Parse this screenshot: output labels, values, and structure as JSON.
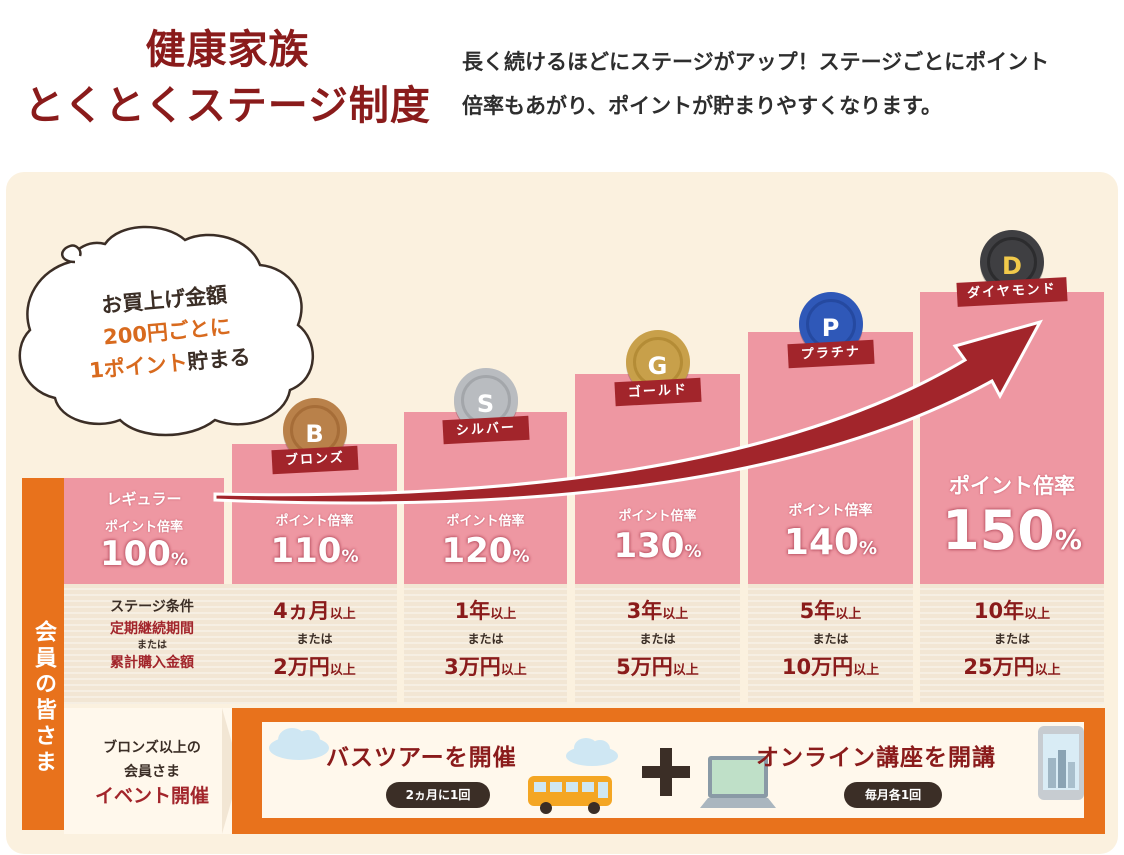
{
  "header": {
    "title_line1": "健康家族",
    "title_line2": "とくとくステージ制度",
    "intro_line1": "長く続けるほどにステージがアップ！ステージごとにポイント",
    "intro_line2": "倍率もあがり、ポイントが貯まりやすくなります。"
  },
  "bubble": {
    "line1": "お買上げ金額",
    "line2": "200円ごとに",
    "line3_accent": "1ポイント",
    "line3_rest": "貯まる"
  },
  "members_label": "会員の皆さま",
  "regular": {
    "name": "レギュラー",
    "rate_label": "ポイント倍率",
    "rate": "100",
    "unit": "%"
  },
  "stages": [
    {
      "letter": "B",
      "name": "ブロンズ",
      "rate_label": "ポイント倍率",
      "rate": "110",
      "unit": "%",
      "period": "4ヵ月",
      "amount": "2万円",
      "medal_color": "#b9814a",
      "ring_color": "#a66d38"
    },
    {
      "letter": "S",
      "name": "シルバー",
      "rate_label": "ポイント倍率",
      "rate": "120",
      "unit": "%",
      "period": "1年",
      "amount": "3万円",
      "medal_color": "#b9bcc0",
      "ring_color": "#a3a6aa"
    },
    {
      "letter": "G",
      "name": "ゴールド",
      "rate_label": "ポイント倍率",
      "rate": "130",
      "unit": "%",
      "period": "3年",
      "amount": "5万円",
      "medal_color": "#c8a04a",
      "ring_color": "#b48c36"
    },
    {
      "letter": "P",
      "name": "プラチナ",
      "rate_label": "ポイント倍率",
      "rate": "140",
      "unit": "%",
      "period": "5年",
      "amount": "10万円",
      "medal_color": "#2f58b8",
      "ring_color": "#2549a0"
    },
    {
      "letter": "D",
      "name": "ダイヤモンド",
      "rate_label": "ポイント倍率",
      "rate": "150",
      "unit": "%",
      "period": "10年",
      "amount": "25万円",
      "medal_color": "#3f3f42",
      "ring_color": "#2c2c2e"
    }
  ],
  "conditions": {
    "head1": "ステージ条件",
    "head2": "定期継続期間",
    "head_or": "または",
    "head3": "累計購入金額",
    "suffix": "以上",
    "or": "または"
  },
  "events": {
    "head1": "ブロンズ以上の",
    "head2": "会員さま",
    "head3": "イベント開催",
    "bus_title": "バスツアーを開催",
    "bus_freq": "2ヵ月に1回",
    "online_title": "オンライン講座を開講",
    "online_freq": "毎月各1回"
  },
  "colors": {
    "title": "#8a1b1b",
    "pink": "#ee97a2",
    "orange": "#e8721c",
    "arrow": "#a2252b",
    "panel": "#fbf1df"
  }
}
